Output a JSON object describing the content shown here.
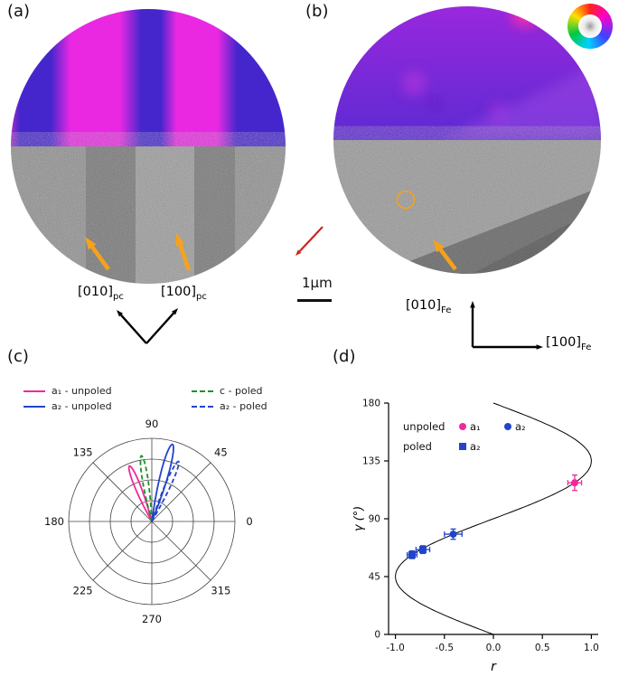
{
  "figure": {
    "panel_a": {
      "label": "(a)",
      "dir1": {
        "base": "[010]",
        "sub": "pc"
      },
      "dir2": {
        "base": "[100]",
        "sub": "pc"
      },
      "top_colors": {
        "blue": "#4526cd",
        "magenta": "#ea28e2",
        "edge_pink": "#cf2fc4"
      },
      "arrow_color": "#f6a21b"
    },
    "panel_b": {
      "label": "(b)",
      "dir_y": {
        "base": "[010]",
        "sub": "Fe"
      },
      "dir_x": {
        "base": "[100]",
        "sub": "Fe"
      },
      "top_color": "#7a28d8",
      "arrow_color": "#f6a21b"
    },
    "panel_c": {
      "label": "(c)"
    },
    "panel_d": {
      "label": "(d)"
    },
    "scale_bar": {
      "label": "1μm"
    },
    "red_arrow_color": "#c8281e"
  },
  "chart_data": [
    {
      "type": "polar-lobes",
      "panel": "c",
      "angle_ticks_deg": [
        0,
        45,
        90,
        135,
        180,
        225,
        270,
        315
      ],
      "num_rings": 4,
      "grid": true,
      "series": [
        {
          "name": "a₁ - unpoled",
          "color": "#ee2a9a",
          "line": "solid",
          "center_deg": 112,
          "peak_r": 0.72,
          "half_width_deg": 7
        },
        {
          "name": "a₂ - unpoled",
          "color": "#2244cc",
          "line": "solid",
          "center_deg": 75,
          "peak_r": 0.96,
          "half_width_deg": 7
        },
        {
          "name": "c - poled",
          "color": "#1f9026",
          "line": "dashed",
          "center_deg": 99,
          "peak_r": 0.8,
          "half_width_deg": 6
        },
        {
          "name": "a₂ - poled",
          "color": "#2244cc",
          "line": "dashed",
          "center_deg": 66,
          "peak_r": 0.79,
          "half_width_deg": 6
        }
      ],
      "legend": {
        "left": [
          {
            "label": "a₁ - unpoled",
            "color": "#ee2a9a",
            "line": "solid"
          },
          {
            "label": "a₂ - unpoled",
            "color": "#2244cc",
            "line": "solid"
          }
        ],
        "right": [
          {
            "label": "c - poled",
            "color": "#1f9026",
            "line": "dashed"
          },
          {
            "label": "a₂ - poled",
            "color": "#2244cc",
            "line": "dashed"
          }
        ]
      }
    },
    {
      "type": "scatter",
      "panel": "d",
      "xlabel": "r",
      "ylabel": "γ (°)",
      "xlim": [
        -1.07,
        1.07
      ],
      "ylim": [
        0,
        180
      ],
      "xticks": [
        "-1.0",
        "-0.5",
        "0.0",
        "0.5",
        "1.0"
      ],
      "xtick_values": [
        -1,
        -0.5,
        0,
        0.5,
        1
      ],
      "yticks": [
        0,
        45,
        90,
        135,
        180
      ],
      "curve": {
        "type": "theory",
        "formula_r_of_gamma": "-sin(2*gamma)",
        "gamma_min": 0,
        "gamma_max": 180,
        "color": "#000000"
      },
      "series": [
        {
          "name": "unpoled a₁",
          "marker": "circle",
          "color": "#ee2a9a",
          "points": [
            {
              "x": 0.83,
              "y": 118,
              "xerr": 0.07,
              "yerr": 6
            }
          ]
        },
        {
          "name": "unpoled a₂",
          "marker": "circle",
          "color": "#2244cc",
          "points": [
            {
              "x": -0.41,
              "y": 78,
              "xerr": 0.09,
              "yerr": 4
            }
          ]
        },
        {
          "name": "poled a₂",
          "marker": "square",
          "color": "#2244cc",
          "points": [
            {
              "x": -0.83,
              "y": 62,
              "xerr": 0.05,
              "yerr": 3
            },
            {
              "x": -0.72,
              "y": 66,
              "xerr": 0.07,
              "yerr": 3
            }
          ]
        }
      ],
      "legend": {
        "rows": [
          {
            "label": "unpoled",
            "items": [
              {
                "marker": "circle",
                "color": "#ee2a9a",
                "text": "a₁"
              },
              {
                "marker": "circle",
                "color": "#2244cc",
                "text": "a₂"
              }
            ]
          },
          {
            "label": "poled",
            "items": [
              {
                "marker": "square",
                "color": "#2244cc",
                "text": "a₂"
              }
            ]
          }
        ],
        "position": "top-left"
      }
    }
  ]
}
